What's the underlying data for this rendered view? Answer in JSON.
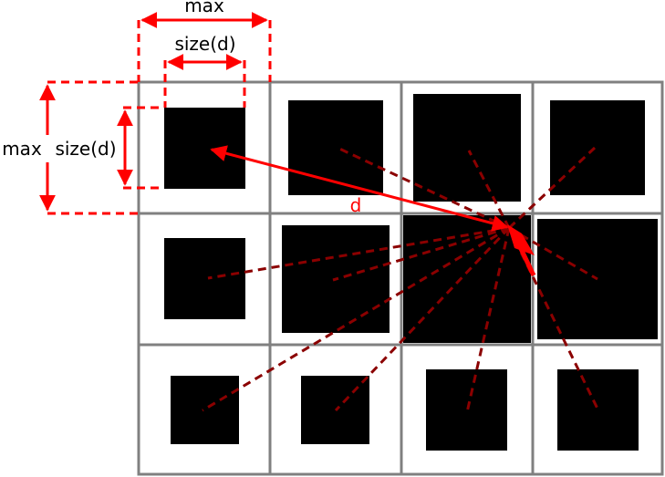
{
  "labels": {
    "top_max": "max",
    "top_size": "size(d)",
    "left_max": "max",
    "left_size": "size(d)",
    "distance": "d"
  },
  "colors": {
    "grid_line": "#808080",
    "square_fill": "#000000",
    "annotation_red": "#ff0000",
    "dashed_ray": "#8b0000",
    "background": "#ffffff"
  }
}
